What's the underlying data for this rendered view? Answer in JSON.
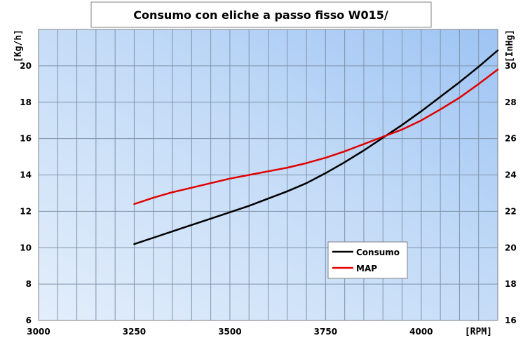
{
  "chart_data": {
    "type": "line",
    "title": "Consumo con eliche a passo fisso W015/",
    "xlabel": "[RPM]",
    "ylabel_left": "[Kg/h]",
    "ylabel_right": "[InHg]",
    "xlim": [
      3000,
      4200
    ],
    "x_ticks": [
      3000,
      3250,
      3500,
      3750,
      4000
    ],
    "ylim_left": [
      6,
      22
    ],
    "y_ticks_left": [
      6,
      8,
      10,
      12,
      14,
      16,
      18,
      20
    ],
    "ylim_right": [
      16,
      32
    ],
    "y_ticks_right": [
      16,
      18,
      20,
      22,
      24,
      26,
      28,
      30
    ],
    "grid": true,
    "legend_position": "bottom-right",
    "series": [
      {
        "name": "Consumo",
        "axis": "left",
        "color": "#000000",
        "x": [
          3250,
          3300,
          3350,
          3400,
          3450,
          3500,
          3550,
          3600,
          3650,
          3700,
          3750,
          3800,
          3850,
          3900,
          3950,
          4000,
          4050,
          4100,
          4150,
          4200
        ],
        "values": [
          10.2,
          10.55,
          10.9,
          11.25,
          11.6,
          11.95,
          12.3,
          12.7,
          13.1,
          13.55,
          14.1,
          14.7,
          15.35,
          16.05,
          16.75,
          17.5,
          18.3,
          19.1,
          19.95,
          20.85
        ]
      },
      {
        "name": "MAP",
        "axis": "right",
        "color": "#e00000",
        "x": [
          3250,
          3300,
          3350,
          3400,
          3450,
          3500,
          3550,
          3600,
          3650,
          3700,
          3750,
          3800,
          3850,
          3900,
          3950,
          4000,
          4050,
          4100,
          4150,
          4200
        ],
        "values": [
          22.4,
          22.75,
          23.05,
          23.3,
          23.55,
          23.8,
          24.0,
          24.2,
          24.4,
          24.65,
          24.95,
          25.3,
          25.7,
          26.1,
          26.5,
          27.0,
          27.6,
          28.25,
          29.0,
          29.8
        ]
      }
    ]
  }
}
